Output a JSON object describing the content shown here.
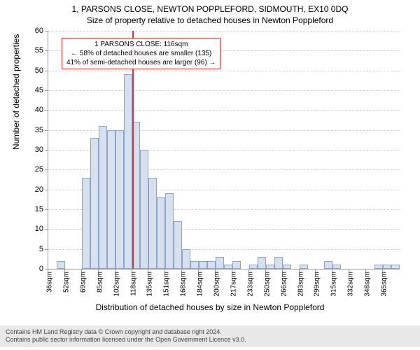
{
  "title": {
    "line1": "1, PARSONS CLOSE, NEWTON POPPLEFORD, SIDMOUTH, EX10 0DQ",
    "line2": "Size of property relative to detached houses in Newton Poppleford"
  },
  "chart": {
    "type": "histogram",
    "ylabel": "Number of detached properties",
    "xlabel": "Distribution of detached houses by size in Newton Poppleford",
    "ylim": [
      0,
      60
    ],
    "ytick_step": 5,
    "x_categories": [
      "36sqm",
      "52sqm",
      "69sqm",
      "85sqm",
      "102sqm",
      "118sqm",
      "135sqm",
      "151sqm",
      "168sqm",
      "184sqm",
      "200sqm",
      "217sqm",
      "233sqm",
      "250sqm",
      "266sqm",
      "283sqm",
      "299sqm",
      "315sqm",
      "332sqm",
      "348sqm",
      "365sqm"
    ],
    "num_bars": 42,
    "values": [
      0,
      2,
      0,
      0,
      23,
      33,
      36,
      35,
      35,
      49,
      37,
      30,
      23,
      18,
      19,
      12,
      5,
      2,
      2,
      2,
      3,
      1,
      2,
      0,
      1,
      3,
      1,
      3,
      1,
      0,
      1,
      0,
      0,
      2,
      1,
      0,
      0,
      0,
      0,
      1,
      1,
      1
    ],
    "bar_fill": "#d6e0ef",
    "bar_border": "#8aa5c7",
    "grid_color": "#d0d0d0",
    "background": "#ffffff",
    "reference_line": {
      "color": "#d43a3a",
      "bar_index": 10
    },
    "info_box": {
      "line1": "1 PARSONS CLOSE: 116sqm",
      "line2": "← 58% of detached houses are smaller (135)",
      "line3": "41% of semi-detached houses are larger (96) →",
      "border_color": "#d43a3a"
    }
  },
  "footer": {
    "line1": "Contains HM Land Registry data © Crown copyright and database right 2024.",
    "line2": "Contains public sector information licensed under the Open Government Licence v3.0."
  }
}
